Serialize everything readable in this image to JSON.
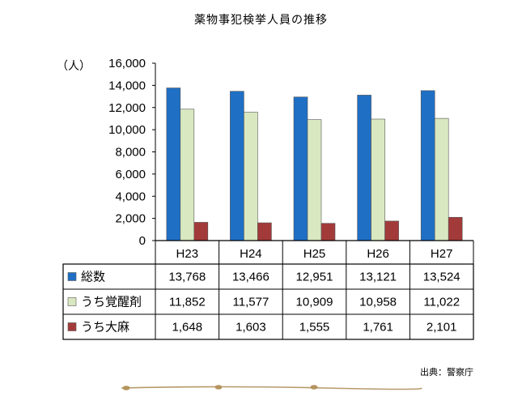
{
  "chart_data": {
    "type": "bar",
    "title": "薬物事犯検挙人員の推移",
    "unit_label": "（人）",
    "categories": [
      "H23",
      "H24",
      "H25",
      "H26",
      "H27"
    ],
    "ylim": [
      0,
      16000
    ],
    "yticks": [
      "0",
      "2,000",
      "4,000",
      "6,000",
      "8,000",
      "10,000",
      "12,000",
      "14,000",
      "16,000"
    ],
    "series": [
      {
        "name": "総数",
        "color": "#1f6fc5",
        "values": [
          13768,
          13466,
          12951,
          13121,
          13524
        ],
        "labels": [
          "13,768",
          "13,466",
          "12,951",
          "13,121",
          "13,524"
        ]
      },
      {
        "name": "うち覚醒剤",
        "color": "#d9e8c0",
        "values": [
          11852,
          11577,
          10909,
          10958,
          11022
        ],
        "labels": [
          "11,852",
          "11,577",
          "10,909",
          "10,958",
          "11,022"
        ]
      },
      {
        "name": "うち大麻",
        "color": "#a33a3a",
        "values": [
          1648,
          1603,
          1555,
          1761,
          2101
        ],
        "labels": [
          "1,648",
          "1,603",
          "1,555",
          "1,761",
          "2,101"
        ]
      }
    ],
    "grid": false
  },
  "source": "出典：警察庁"
}
